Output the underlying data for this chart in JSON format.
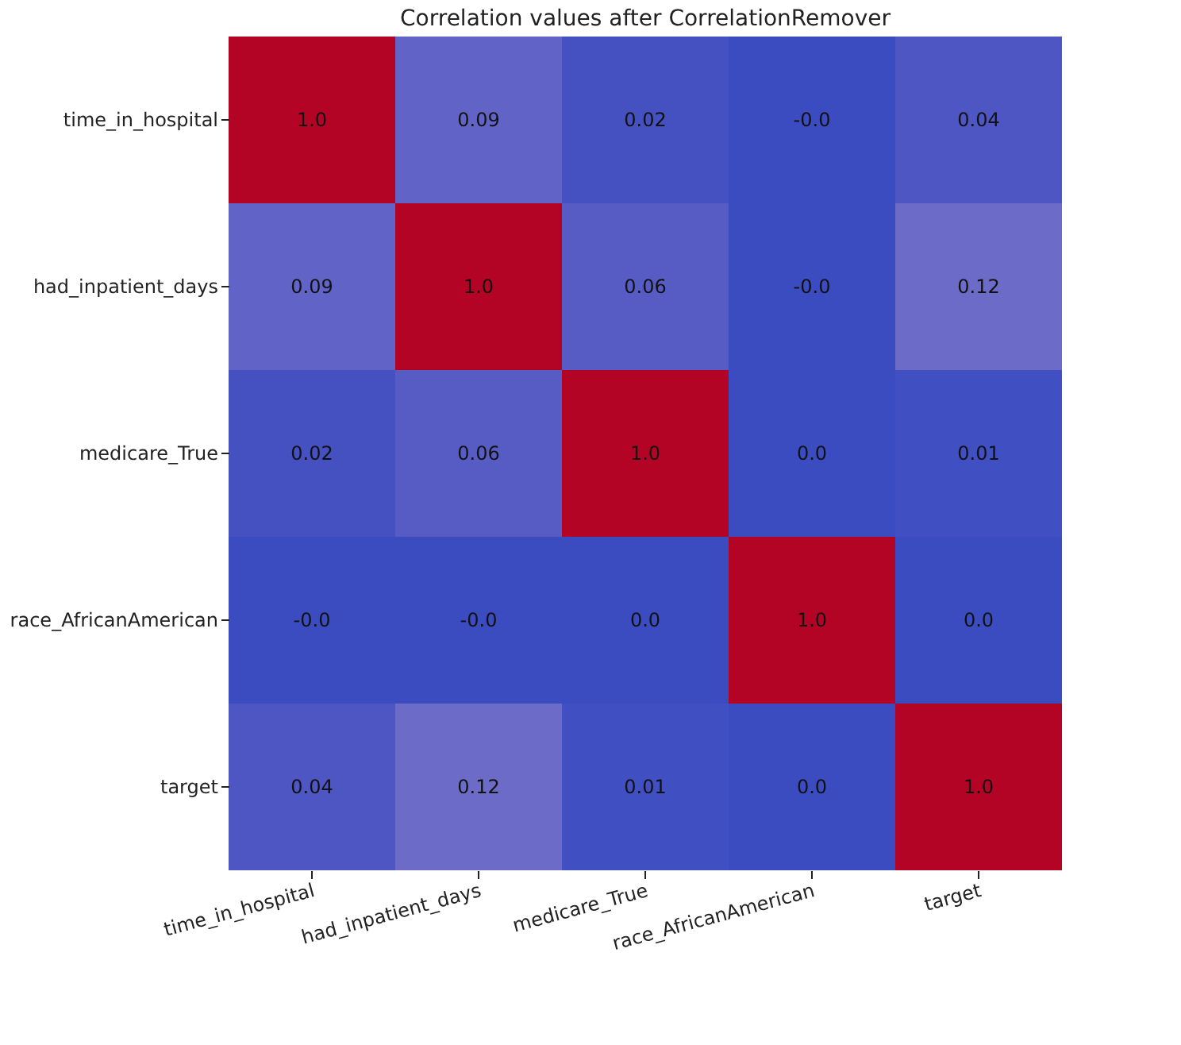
{
  "chart_data": {
    "type": "heatmap",
    "title": "Correlation values after CorrelationRemover",
    "categories": [
      "time_in_hospital",
      "had_inpatient_days",
      "medicare_True",
      "race_AfricanAmerican",
      "target"
    ],
    "y_categories": [
      "time_in_hospital",
      "had_inpatient_days",
      "medicare_True",
      "race_AfricanAmerican",
      "target"
    ],
    "cells": [
      [
        1.0,
        0.09,
        0.02,
        0.0,
        0.04
      ],
      [
        0.09,
        1.0,
        0.06,
        0.0,
        0.12
      ],
      [
        0.02,
        0.06,
        1.0,
        0.0,
        0.01
      ],
      [
        0.0,
        0.0,
        0.0,
        1.0,
        0.0
      ],
      [
        0.04,
        0.12,
        0.01,
        0.0,
        1.0
      ]
    ],
    "cell_labels": [
      [
        "1.0",
        "0.09",
        "0.02",
        "-0.0",
        "0.04"
      ],
      [
        "0.09",
        "1.0",
        "0.06",
        "-0.0",
        "0.12"
      ],
      [
        "0.02",
        "0.06",
        "1.0",
        "0.0",
        "0.01"
      ],
      [
        "-0.0",
        "-0.0",
        "0.0",
        "1.0",
        "0.0"
      ],
      [
        "0.04",
        "0.12",
        "0.01",
        "0.0",
        "1.0"
      ]
    ]
  }
}
